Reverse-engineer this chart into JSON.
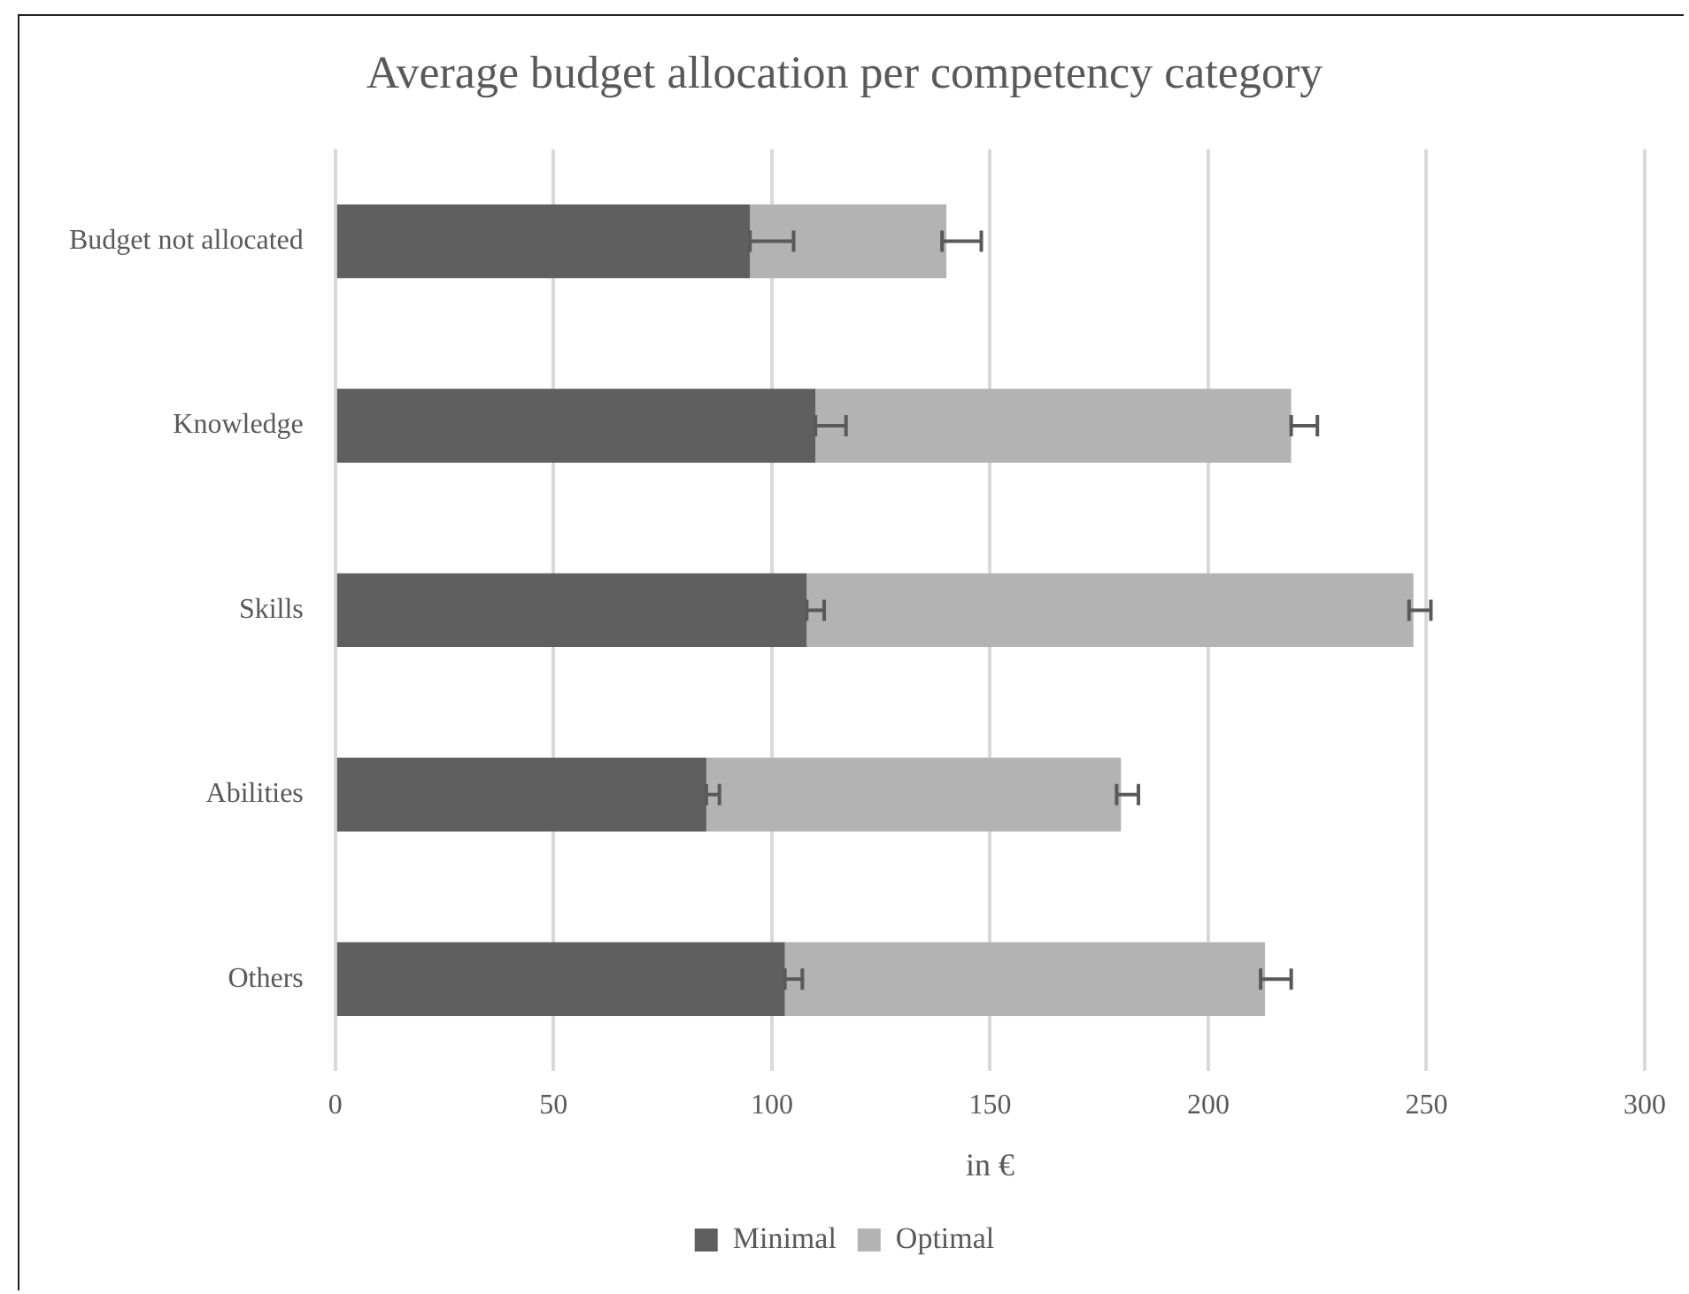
{
  "chart_data": {
    "type": "bar",
    "orientation": "horizontal",
    "stacked": true,
    "title": "Average budget allocation per competency category",
    "xlabel": "in €",
    "categories": [
      "Budget not allocated",
      "Knowledge",
      "Skills",
      "Abilities",
      "Others"
    ],
    "series": [
      {
        "name": "Minimal",
        "color": "#5f5f5f",
        "values": [
          95,
          110,
          108,
          85,
          103
        ],
        "errors": [
          [
            95,
            105
          ],
          [
            110,
            117
          ],
          [
            108,
            112
          ],
          [
            85,
            88
          ],
          [
            103,
            107
          ]
        ]
      },
      {
        "name": "Optimal",
        "color": "#b3b3b3",
        "values": [
          45,
          109,
          139,
          95,
          110
        ],
        "errors": [
          [
            139,
            148
          ],
          [
            219,
            225
          ],
          [
            246,
            251
          ],
          [
            179,
            184
          ],
          [
            212,
            219
          ]
        ]
      }
    ],
    "xlim": [
      0,
      300
    ],
    "xticks": [
      0,
      50,
      100,
      150,
      200,
      250,
      300
    ],
    "grid": "x",
    "legend": "bottom"
  }
}
